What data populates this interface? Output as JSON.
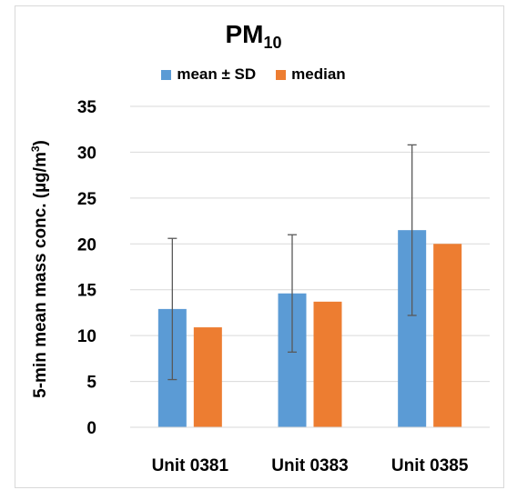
{
  "chart_data": {
    "type": "bar",
    "title_main": "PM",
    "title_sub": "10",
    "ylabel_main": "5-min mean mass conc. (µg/m",
    "ylabel_sup": "3",
    "ylabel_close": ")",
    "categories": [
      "Unit 0381",
      "Unit 0383",
      "Unit 0385"
    ],
    "series": [
      {
        "name": "mean ± SD",
        "values": [
          12.9,
          14.6,
          21.5
        ],
        "error": [
          7.7,
          6.4,
          9.3
        ],
        "color": "#5b9bd5"
      },
      {
        "name": "median",
        "values": [
          10.9,
          13.7,
          20.0
        ],
        "color": "#ed7d31"
      }
    ],
    "ylim": [
      0,
      35
    ],
    "yticks": [
      0,
      5,
      10,
      15,
      20,
      25,
      30,
      35
    ],
    "grid": true,
    "legend_position": "top"
  }
}
